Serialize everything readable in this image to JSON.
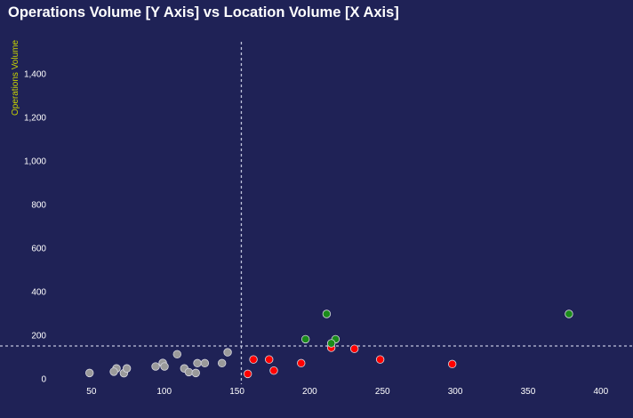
{
  "chart_data": {
    "type": "scatter",
    "title": "Operations Volume [Y Axis] vs Location Volume [X Axis]",
    "xlabel": "",
    "ylabel": "Operations Volume",
    "xlim": [
      0,
      420
    ],
    "ylim": [
      0,
      1550
    ],
    "x_ticks": [
      50,
      100,
      150,
      200,
      250,
      300,
      350,
      400
    ],
    "y_ticks": [
      0,
      200,
      400,
      600,
      800,
      1000,
      1200,
      1400
    ],
    "y_tick_labels": [
      "0",
      "200",
      "400",
      "600",
      "800",
      "1,000",
      "1,200",
      "1,400"
    ],
    "grid": false,
    "reference_lines": {
      "x": 153,
      "y": 151,
      "style": "dashed",
      "color": "#c0c4dc"
    },
    "series": [
      {
        "color": "#9a9a9a",
        "points": [
          [
            48.7,
            27
          ],
          [
            67.2,
            48
          ],
          [
            65.4,
            33
          ],
          [
            72.3,
            26
          ],
          [
            74.3,
            48
          ],
          [
            94.1,
            57
          ],
          [
            99,
            73
          ],
          [
            100.2,
            57
          ],
          [
            108.9,
            113
          ],
          [
            113.8,
            48
          ],
          [
            116.9,
            31
          ],
          [
            121.7,
            27
          ],
          [
            122.8,
            72
          ],
          [
            127.9,
            72
          ],
          [
            139.7,
            72
          ],
          [
            143.6,
            122
          ]
        ]
      },
      {
        "color": "#ff0000",
        "points": [
          [
            157.4,
            23
          ],
          [
            161.3,
            89
          ],
          [
            172.1,
            89
          ],
          [
            175.3,
            38
          ],
          [
            194.1,
            72
          ],
          [
            214.8,
            143
          ],
          [
            230.7,
            138
          ],
          [
            248.4,
            89
          ],
          [
            297.9,
            68
          ]
        ]
      },
      {
        "color": "#1a8c1a",
        "points": [
          [
            211.6,
            298
          ],
          [
            197.1,
            182
          ],
          [
            217.7,
            182
          ],
          [
            214.8,
            163
          ],
          [
            378.1,
            298
          ]
        ]
      }
    ]
  }
}
